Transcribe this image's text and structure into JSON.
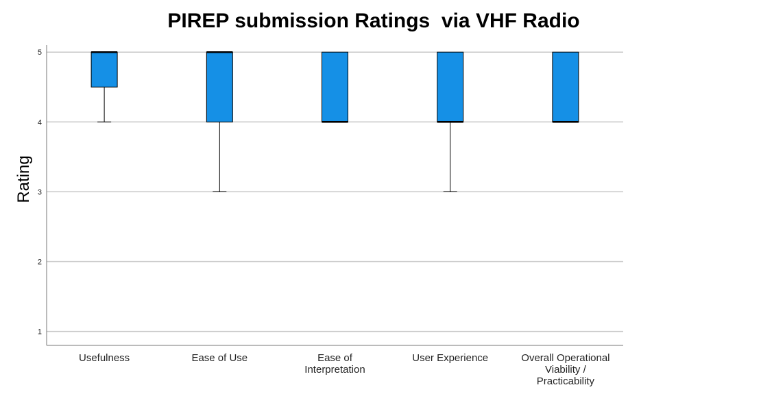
{
  "chart_data": {
    "type": "boxplot",
    "title": "PIREP submission Ratings  via VHF Radio",
    "ylabel": "Rating",
    "xlabel": "",
    "ylim": [
      0.8,
      5.1
    ],
    "yticks": [
      1,
      2,
      3,
      4,
      5
    ],
    "grid": true,
    "colors": {
      "box": "#1590e6",
      "grid": "#c8c8c8",
      "axis": "#777777"
    },
    "categories": [
      {
        "label": [
          "Usefulness"
        ],
        "min": 4,
        "q1": 4.5,
        "median": 5,
        "q3": 5,
        "max": 5
      },
      {
        "label": [
          "Ease of Use"
        ],
        "min": 3,
        "q1": 4,
        "median": 5,
        "q3": 5,
        "max": 5
      },
      {
        "label": [
          "Ease of",
          "Interpretation"
        ],
        "min": 4,
        "q1": 4,
        "median": 4,
        "q3": 5,
        "max": 5
      },
      {
        "label": [
          "User Experience"
        ],
        "min": 3,
        "q1": 4,
        "median": 4,
        "q3": 5,
        "max": 5
      },
      {
        "label": [
          "Overall Operational",
          "Viability /",
          "Practicability"
        ],
        "min": 4,
        "q1": 4,
        "median": 4,
        "q3": 5,
        "max": 5
      }
    ]
  }
}
